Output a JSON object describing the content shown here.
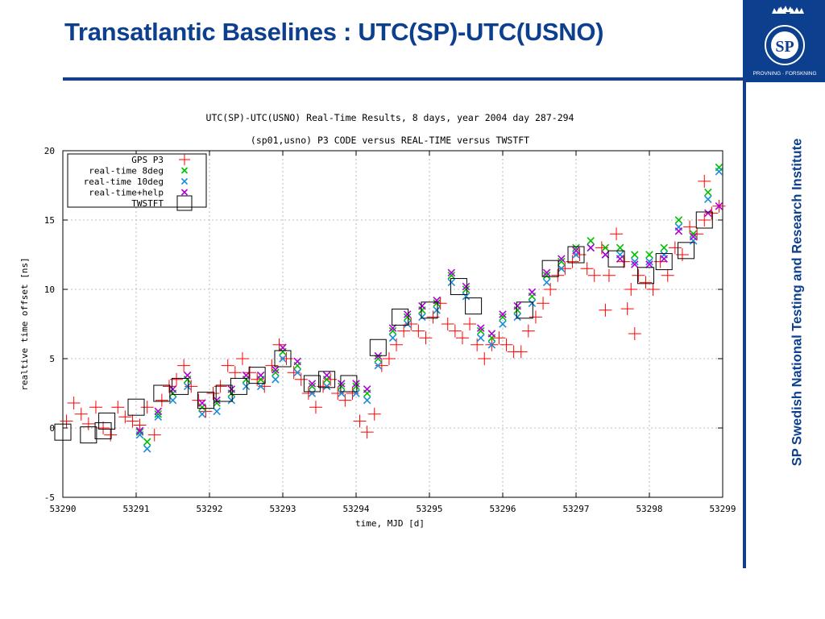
{
  "slide": {
    "title": "Transatlantic Baselines : UTC(SP)-UTC(USNO)",
    "side_text": "SP Swedish National Testing and Research Institute",
    "logo_text": "SP",
    "logo_ring_text": "PROVNING · FORSKNING",
    "accent_color": "#0d3f8f"
  },
  "chart_data": {
    "type": "scatter",
    "title": "UTC(SP)-UTC(USNO) Real-Time Results, 8 days, year 2004 day 287-294",
    "subtitle": "(sp01,usno) P3 CODE versus REAL-TIME versus TWSTFT",
    "xlabel": "time, MJD [d]",
    "ylabel": "realtive time offset [ns]",
    "xlim": [
      53290,
      53299
    ],
    "ylim": [
      -5,
      20
    ],
    "x_ticks": [
      "53290",
      "53291",
      "53292",
      "53293",
      "53294",
      "53295",
      "53296",
      "53297",
      "53298",
      "53299"
    ],
    "y_ticks": [
      "20",
      "15",
      "10",
      "5",
      "0",
      "-5"
    ],
    "grid": true,
    "legend_position": "top-left",
    "series": [
      {
        "name": "GPS P3",
        "marker": "plus",
        "color": "#ff0000",
        "points": [
          [
            53290.05,
            0.5
          ],
          [
            53290.15,
            1.8
          ],
          [
            53290.25,
            1.0
          ],
          [
            53290.35,
            0.3
          ],
          [
            53290.45,
            1.5
          ],
          [
            53290.55,
            0.0
          ],
          [
            53290.65,
            -0.5
          ],
          [
            53290.75,
            1.5
          ],
          [
            53290.85,
            0.8
          ],
          [
            53290.95,
            0.5
          ],
          [
            53291.05,
            0.2
          ],
          [
            53291.15,
            1.5
          ],
          [
            53291.25,
            -0.5
          ],
          [
            53291.35,
            2.0
          ],
          [
            53291.45,
            3.0
          ],
          [
            53291.55,
            3.5
          ],
          [
            53291.65,
            4.5
          ],
          [
            53291.75,
            3.0
          ],
          [
            53291.85,
            2.0
          ],
          [
            53291.95,
            1.2
          ],
          [
            53292.05,
            2.5
          ],
          [
            53292.15,
            3.0
          ],
          [
            53292.25,
            4.5
          ],
          [
            53292.35,
            4.0
          ],
          [
            53292.45,
            5.0
          ],
          [
            53292.55,
            4.0
          ],
          [
            53292.65,
            3.5
          ],
          [
            53292.75,
            3.0
          ],
          [
            53292.85,
            4.5
          ],
          [
            53292.95,
            6.0
          ],
          [
            53293.05,
            5.0
          ],
          [
            53293.15,
            4.0
          ],
          [
            53293.25,
            3.5
          ],
          [
            53293.35,
            2.5
          ],
          [
            53293.45,
            1.5
          ],
          [
            53293.55,
            3.0
          ],
          [
            53293.65,
            3.5
          ],
          [
            53293.75,
            2.5
          ],
          [
            53293.85,
            2.0
          ],
          [
            53293.95,
            2.5
          ],
          [
            53294.05,
            0.5
          ],
          [
            53294.15,
            -0.3
          ],
          [
            53294.25,
            1.0
          ],
          [
            53294.35,
            4.5
          ],
          [
            53294.45,
            5.0
          ],
          [
            53294.55,
            6.0
          ],
          [
            53294.65,
            7.0
          ],
          [
            53294.75,
            7.5
          ],
          [
            53294.85,
            7.0
          ],
          [
            53294.95,
            6.5
          ],
          [
            53295.05,
            8.0
          ],
          [
            53295.15,
            9.0
          ],
          [
            53295.25,
            7.5
          ],
          [
            53295.35,
            7.0
          ],
          [
            53295.45,
            6.5
          ],
          [
            53295.55,
            7.5
          ],
          [
            53295.65,
            6.0
          ],
          [
            53295.75,
            5.0
          ],
          [
            53295.85,
            6.0
          ],
          [
            53295.95,
            6.5
          ],
          [
            53296.05,
            6.0
          ],
          [
            53296.15,
            5.5
          ],
          [
            53296.25,
            5.5
          ],
          [
            53296.35,
            7.0
          ],
          [
            53296.45,
            8.0
          ],
          [
            53296.55,
            9.0
          ],
          [
            53296.65,
            10.0
          ],
          [
            53296.75,
            11.0
          ],
          [
            53296.85,
            11.5
          ],
          [
            53296.95,
            12.0
          ],
          [
            53297.05,
            12.5
          ],
          [
            53297.15,
            11.5
          ],
          [
            53297.25,
            11.0
          ],
          [
            53297.35,
            13.0
          ],
          [
            53297.45,
            11.0
          ],
          [
            53297.55,
            14.0
          ],
          [
            53297.65,
            12.0
          ],
          [
            53297.75,
            10.0
          ],
          [
            53297.85,
            11.0
          ],
          [
            53297.95,
            10.5
          ],
          [
            53298.05,
            10.0
          ],
          [
            53298.15,
            12.0
          ],
          [
            53298.25,
            11.0
          ],
          [
            53298.35,
            13.0
          ],
          [
            53298.45,
            12.5
          ],
          [
            53298.55,
            14.5
          ],
          [
            53298.65,
            14.0
          ],
          [
            53298.75,
            15.0
          ],
          [
            53298.85,
            15.5
          ],
          [
            53298.95,
            16.0
          ],
          [
            53297.4,
            8.5
          ],
          [
            53297.8,
            6.8
          ],
          [
            53297.7,
            8.6
          ],
          [
            53298.75,
            17.8
          ]
        ]
      },
      {
        "name": "real-time 8deg",
        "marker": "x",
        "color": "#00c000",
        "points": [
          [
            53291.05,
            -0.3
          ],
          [
            53291.15,
            -1.0
          ],
          [
            53291.3,
            1.0
          ],
          [
            53291.5,
            2.5
          ],
          [
            53291.7,
            3.5
          ],
          [
            53291.9,
            1.5
          ],
          [
            53292.1,
            1.8
          ],
          [
            53292.3,
            2.5
          ],
          [
            53292.5,
            3.5
          ],
          [
            53292.7,
            3.5
          ],
          [
            53292.9,
            4.0
          ],
          [
            53293.0,
            5.5
          ],
          [
            53293.2,
            4.5
          ],
          [
            53293.4,
            3.0
          ],
          [
            53293.6,
            3.5
          ],
          [
            53293.8,
            3.0
          ],
          [
            53294.0,
            3.0
          ],
          [
            53294.15,
            2.5
          ],
          [
            53294.3,
            5.0
          ],
          [
            53294.5,
            7.0
          ],
          [
            53294.7,
            8.0
          ],
          [
            53294.9,
            8.5
          ],
          [
            53295.1,
            9.0
          ],
          [
            53295.3,
            11.0
          ],
          [
            53295.5,
            10.0
          ],
          [
            53295.7,
            7.0
          ],
          [
            53295.85,
            6.5
          ],
          [
            53296.0,
            8.0
          ],
          [
            53296.2,
            8.5
          ],
          [
            53296.4,
            9.5
          ],
          [
            53296.6,
            11.0
          ],
          [
            53296.8,
            12.0
          ],
          [
            53297.0,
            13.0
          ],
          [
            53297.2,
            13.5
          ],
          [
            53297.4,
            13.0
          ],
          [
            53297.6,
            13.0
          ],
          [
            53297.8,
            12.5
          ],
          [
            53298.0,
            12.5
          ],
          [
            53298.2,
            13.0
          ],
          [
            53298.4,
            15.0
          ],
          [
            53298.6,
            14.0
          ],
          [
            53298.8,
            17.0
          ],
          [
            53298.95,
            18.8
          ]
        ]
      },
      {
        "name": "real-time 10deg",
        "marker": "x",
        "color": "#1a8fd8",
        "points": [
          [
            53291.05,
            -0.5
          ],
          [
            53291.15,
            -1.5
          ],
          [
            53291.3,
            0.8
          ],
          [
            53291.5,
            2.0
          ],
          [
            53291.7,
            3.0
          ],
          [
            53291.9,
            1.0
          ],
          [
            53292.1,
            1.2
          ],
          [
            53292.3,
            2.0
          ],
          [
            53292.5,
            3.0
          ],
          [
            53292.7,
            3.0
          ],
          [
            53292.9,
            3.5
          ],
          [
            53293.0,
            5.0
          ],
          [
            53293.2,
            4.0
          ],
          [
            53293.4,
            2.5
          ],
          [
            53293.6,
            3.0
          ],
          [
            53293.8,
            2.5
          ],
          [
            53294.0,
            2.5
          ],
          [
            53294.15,
            2.0
          ],
          [
            53294.3,
            4.5
          ],
          [
            53294.5,
            6.5
          ],
          [
            53294.7,
            7.5
          ],
          [
            53294.9,
            8.0
          ],
          [
            53295.1,
            8.5
          ],
          [
            53295.3,
            10.5
          ],
          [
            53295.5,
            9.5
          ],
          [
            53295.7,
            6.5
          ],
          [
            53295.85,
            6.0
          ],
          [
            53296.0,
            7.5
          ],
          [
            53296.2,
            8.0
          ],
          [
            53296.4,
            9.0
          ],
          [
            53296.6,
            10.5
          ],
          [
            53296.8,
            11.5
          ],
          [
            53297.0,
            12.5
          ],
          [
            53297.2,
            13.0
          ],
          [
            53297.4,
            12.5
          ],
          [
            53297.6,
            12.5
          ],
          [
            53297.8,
            12.0
          ],
          [
            53298.0,
            12.0
          ],
          [
            53298.2,
            12.5
          ],
          [
            53298.4,
            14.5
          ],
          [
            53298.6,
            13.5
          ],
          [
            53298.8,
            16.5
          ],
          [
            53298.95,
            18.5
          ]
        ]
      },
      {
        "name": "real-time+help",
        "marker": "x",
        "color": "#b000d8",
        "points": [
          [
            53291.05,
            -0.2
          ],
          [
            53291.3,
            1.2
          ],
          [
            53291.5,
            2.8
          ],
          [
            53291.7,
            3.8
          ],
          [
            53291.9,
            1.8
          ],
          [
            53292.1,
            2.0
          ],
          [
            53292.3,
            2.8
          ],
          [
            53292.5,
            3.8
          ],
          [
            53292.7,
            3.8
          ],
          [
            53292.9,
            4.2
          ],
          [
            53293.0,
            5.8
          ],
          [
            53293.2,
            4.8
          ],
          [
            53293.4,
            3.2
          ],
          [
            53293.6,
            3.8
          ],
          [
            53293.8,
            3.2
          ],
          [
            53294.0,
            3.2
          ],
          [
            53294.15,
            2.8
          ],
          [
            53294.3,
            5.2
          ],
          [
            53294.5,
            7.2
          ],
          [
            53294.7,
            8.2
          ],
          [
            53294.9,
            8.8
          ],
          [
            53295.1,
            9.2
          ],
          [
            53295.3,
            11.2
          ],
          [
            53295.5,
            10.2
          ],
          [
            53295.7,
            7.2
          ],
          [
            53295.85,
            6.8
          ],
          [
            53296.0,
            8.2
          ],
          [
            53296.2,
            8.8
          ],
          [
            53296.4,
            9.8
          ],
          [
            53296.6,
            11.2
          ],
          [
            53296.8,
            12.2
          ],
          [
            53297.0,
            12.8
          ],
          [
            53297.2,
            13.0
          ],
          [
            53297.4,
            12.5
          ],
          [
            53297.6,
            12.2
          ],
          [
            53297.8,
            11.8
          ],
          [
            53298.0,
            11.8
          ],
          [
            53298.2,
            12.2
          ],
          [
            53298.4,
            14.2
          ],
          [
            53298.6,
            13.8
          ],
          [
            53298.8,
            15.5
          ],
          [
            53298.95,
            16.0
          ]
        ]
      },
      {
        "name": "TWSTFT",
        "marker": "square",
        "color": "#000000",
        "points": [
          [
            53290.0,
            -0.3
          ],
          [
            53290.35,
            -0.5
          ],
          [
            53290.55,
            -0.2
          ],
          [
            53290.6,
            0.5
          ],
          [
            53291.0,
            1.5
          ],
          [
            53291.35,
            2.5
          ],
          [
            53291.6,
            3.0
          ],
          [
            53291.95,
            2.0
          ],
          [
            53292.2,
            2.5
          ],
          [
            53292.4,
            3.0
          ],
          [
            53292.65,
            3.8
          ],
          [
            53293.0,
            5.0
          ],
          [
            53293.4,
            3.2
          ],
          [
            53293.6,
            3.5
          ],
          [
            53293.9,
            3.2
          ],
          [
            53294.3,
            5.8
          ],
          [
            53294.6,
            8.0
          ],
          [
            53295.0,
            8.5
          ],
          [
            53295.4,
            10.2
          ],
          [
            53295.6,
            8.8
          ],
          [
            53296.3,
            8.5
          ],
          [
            53296.65,
            11.5
          ],
          [
            53297.0,
            12.5
          ],
          [
            53297.55,
            12.2
          ],
          [
            53297.95,
            11.0
          ],
          [
            53298.2,
            12.0
          ],
          [
            53298.5,
            12.8
          ],
          [
            53298.75,
            15.0
          ]
        ]
      }
    ]
  }
}
